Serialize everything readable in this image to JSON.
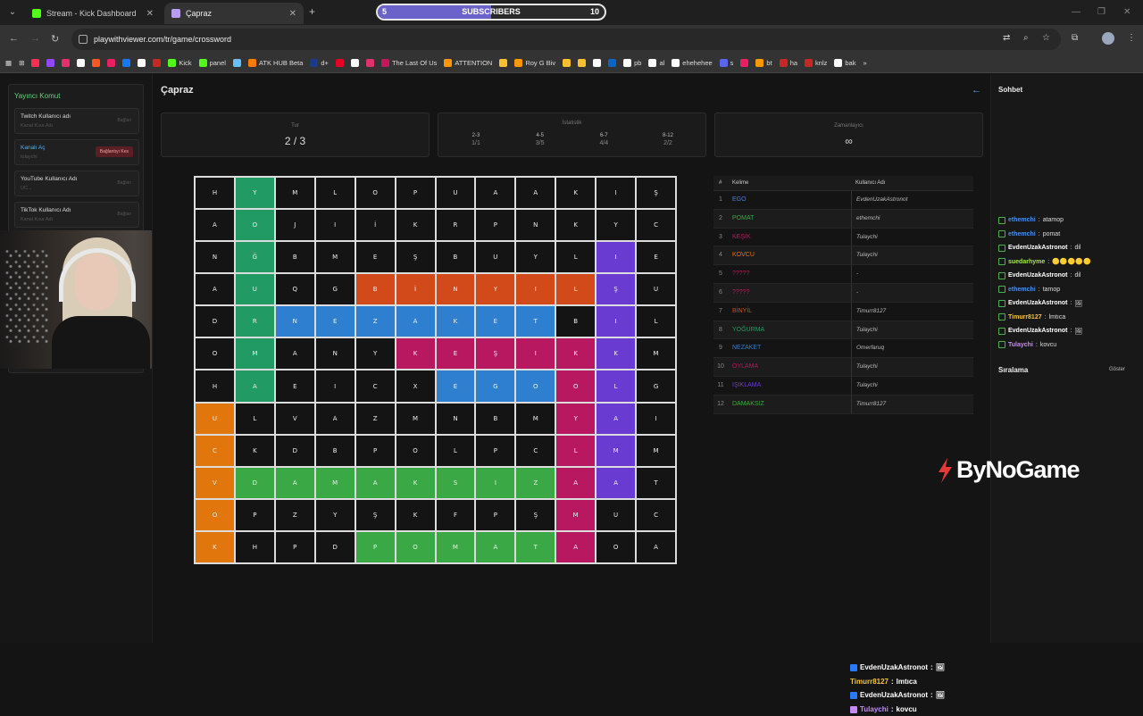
{
  "browser": {
    "tabs": [
      {
        "label": "Stream - Kick Dashboard",
        "icon_color": "#53fc18"
      },
      {
        "label": "Çapraz",
        "icon_color": "#b99cf0"
      }
    ],
    "url": "playwithviewer.com/tr/game/crossword",
    "bookmarks": [
      {
        "label": "",
        "color": "#ff2d55"
      },
      {
        "label": "",
        "color": "#9146ff"
      },
      {
        "label": "",
        "color": "#e1306c"
      },
      {
        "label": "",
        "color": "#ffffff"
      },
      {
        "label": "",
        "color": "#ff5722"
      },
      {
        "label": "",
        "color": "#e91e63"
      },
      {
        "label": "",
        "color": "#1877f2"
      },
      {
        "label": "",
        "color": "#ffffff"
      },
      {
        "label": "",
        "color": "#c62828"
      },
      {
        "label": "Kick",
        "color": "#53fc18"
      },
      {
        "label": "panel",
        "color": "#53fc18"
      },
      {
        "label": "",
        "color": "#66c0f4"
      },
      {
        "label": "ATK HUB Beta",
        "color": "#ff7a00"
      },
      {
        "label": "d+",
        "color": "#1a3a8a"
      },
      {
        "label": "",
        "color": "#e60023"
      },
      {
        "label": "",
        "color": "#ffffff"
      },
      {
        "label": "",
        "color": "#e1306c"
      },
      {
        "label": "The Last Of Us",
        "color": "#c2185b"
      },
      {
        "label": "ATTENTION",
        "color": "#ff9800"
      },
      {
        "label": "",
        "color": "#fbc02d"
      },
      {
        "label": "Roy G Biv",
        "color": "#ff9800"
      },
      {
        "label": "",
        "color": "#fbc02d"
      },
      {
        "label": "",
        "color": "#fbc02d"
      },
      {
        "label": "",
        "color": "#ffffff"
      },
      {
        "label": "",
        "color": "#0a66c2"
      },
      {
        "label": "pb",
        "color": "#ffffff"
      },
      {
        "label": "al",
        "color": "#ffffff"
      },
      {
        "label": "ehehehee",
        "color": "#ffffff"
      },
      {
        "label": "s",
        "color": "#5865f2"
      },
      {
        "label": "",
        "color": "#e91e63"
      },
      {
        "label": "bt",
        "color": "#ff9800"
      },
      {
        "label": "ha",
        "color": "#c62828"
      },
      {
        "label": "knlz",
        "color": "#c62828"
      },
      {
        "label": "bak",
        "color": "#ffffff"
      }
    ]
  },
  "subscribers": {
    "label": "SUBSCRIBERS",
    "current": "5",
    "goal": "10",
    "progress": 0.5,
    "color": "#6b63c9"
  },
  "left_panel": {
    "title": "Yayıncı Komut",
    "cards": [
      {
        "label": "Twitch Kullanıcı adı",
        "sub": "Kanal Kısa Adı",
        "btn": "Bağlan"
      },
      {
        "label": "Kanalı Aç",
        "sub": "tulaychi",
        "btn": "Bağlantıyı Kes"
      },
      {
        "label": "YouTube Kullanıcı Adı",
        "sub": "UC...",
        "btn": "Bağlan"
      },
      {
        "label": "TikTok Kullanıcı Adı",
        "sub": "Kanal Kısa Adı",
        "btn": "Bağlan"
      }
    ]
  },
  "game": {
    "title": "Çapraz",
    "round": {
      "label": "Tur",
      "value": "2 / 3"
    },
    "stats": {
      "label": "İstatistik",
      "cols": [
        {
          "range": "2-3",
          "value": "1/1"
        },
        {
          "range": "4-5",
          "value": "3/5"
        },
        {
          "range": "6-7",
          "value": "4/4"
        },
        {
          "range": "8-12",
          "value": "2/2"
        }
      ]
    },
    "timer": {
      "label": "Zamanlayıcı",
      "value": "∞"
    },
    "grid": [
      [
        "H",
        "Y",
        "M",
        "L",
        "O",
        "P",
        "U",
        "A",
        "A",
        "K",
        "I",
        "Ş"
      ],
      [
        "A",
        "O",
        "J",
        "I",
        "İ",
        "K",
        "R",
        "P",
        "N",
        "K",
        "Y",
        "C"
      ],
      [
        "N",
        "Ğ",
        "B",
        "M",
        "E",
        "Ş",
        "B",
        "U",
        "Y",
        "L",
        "I",
        "E"
      ],
      [
        "A",
        "U",
        "Q",
        "G",
        "B",
        "İ",
        "N",
        "Y",
        "I",
        "L",
        "Ş",
        "U"
      ],
      [
        "D",
        "R",
        "N",
        "E",
        "Z",
        "A",
        "K",
        "E",
        "T",
        "B",
        "I",
        "L"
      ],
      [
        "O",
        "M",
        "A",
        "N",
        "Y",
        "K",
        "E",
        "Ş",
        "I",
        "K",
        "K",
        "M"
      ],
      [
        "H",
        "A",
        "E",
        "I",
        "C",
        "X",
        "E",
        "G",
        "O",
        "O",
        "L",
        "G"
      ],
      [
        "U",
        "L",
        "V",
        "A",
        "Z",
        "M",
        "N",
        "B",
        "M",
        "Y",
        "A",
        "I"
      ],
      [
        "C",
        "K",
        "D",
        "B",
        "P",
        "O",
        "L",
        "P",
        "C",
        "L",
        "M",
        "M"
      ],
      [
        "V",
        "D",
        "A",
        "M",
        "A",
        "K",
        "S",
        "I",
        "Z",
        "A",
        "A",
        "T"
      ],
      [
        "O",
        "P",
        "Z",
        "Y",
        "Ş",
        "K",
        "F",
        "P",
        "Ş",
        "M",
        "U",
        "C"
      ],
      [
        "K",
        "H",
        "P",
        "D",
        "P",
        "O",
        "M",
        "A",
        "T",
        "A",
        "O",
        "A"
      ]
    ],
    "grid_colors": [
      [
        "",
        "g",
        "",
        "",
        "",
        "",
        "",
        "",
        "",
        "",
        "",
        ""
      ],
      [
        "",
        "g",
        "",
        "",
        "",
        "",
        "",
        "",
        "",
        "",
        "",
        ""
      ],
      [
        "",
        "g",
        "",
        "",
        "",
        "",
        "",
        "",
        "",
        "",
        "p",
        ""
      ],
      [
        "",
        "g",
        "",
        "",
        "r",
        "r",
        "r",
        "r",
        "r",
        "r",
        "p",
        ""
      ],
      [
        "",
        "g",
        "b",
        "b",
        "b",
        "b",
        "b",
        "b",
        "b",
        "",
        "p",
        ""
      ],
      [
        "",
        "g",
        "",
        "",
        "",
        "m",
        "m",
        "m",
        "m",
        "m",
        "p",
        ""
      ],
      [
        "",
        "g",
        "",
        "",
        "",
        "",
        "b",
        "b",
        "b",
        "m",
        "p",
        ""
      ],
      [
        "o",
        "",
        "",
        "",
        "",
        "",
        "",
        "",
        "",
        "m",
        "p",
        ""
      ],
      [
        "o",
        "",
        "",
        "",
        "",
        "",
        "",
        "",
        "",
        "m",
        "p",
        ""
      ],
      [
        "o",
        "G",
        "G",
        "G",
        "G",
        "G",
        "G",
        "G",
        "G",
        "m",
        "p",
        ""
      ],
      [
        "o",
        "",
        "",
        "",
        "",
        "",
        "",
        "",
        "",
        "m",
        "",
        ""
      ],
      [
        "o",
        "",
        "",
        "",
        "G",
        "G",
        "G",
        "G",
        "G",
        "m",
        "",
        ""
      ]
    ],
    "color_map": {
      "g": "#219a63",
      "G": "#3aa845",
      "r": "#d2491a",
      "b": "#2f7fd0",
      "m": "#b8185f",
      "p": "#6a3bd0",
      "o": "#e1760c"
    },
    "table": {
      "col_num": "#",
      "col_word": "Kelime",
      "col_user": "Kullanıcı Adı",
      "rows": [
        {
          "num": "1",
          "word": "EGO",
          "user": "EvdenUzakAstronot",
          "color": "#4b7fdc"
        },
        {
          "num": "2",
          "word": "POMAT",
          "user": "ethemchi",
          "color": "#3aa845"
        },
        {
          "num": "3",
          "word": "KEŞİK",
          "user": "Tulaychi",
          "color": "#b8185f"
        },
        {
          "num": "4",
          "word": "KOVCU",
          "user": "Tulaychi",
          "color": "#e1760c"
        },
        {
          "num": "5",
          "word": "?????",
          "user": "-",
          "color": "#b8185f"
        },
        {
          "num": "6",
          "word": "?????",
          "user": "-",
          "color": "#b8185f"
        },
        {
          "num": "7",
          "word": "BİNYİL",
          "user": "Timurr8127",
          "color": "#d2491a"
        },
        {
          "num": "8",
          "word": "YOĞURMA",
          "user": "Tulaychi",
          "color": "#219a63"
        },
        {
          "num": "9",
          "word": "NEZAKET",
          "user": "Omerfaruq",
          "color": "#2f7fd0"
        },
        {
          "num": "10",
          "word": "OYLAMA",
          "user": "Tulaychi",
          "color": "#b8185f"
        },
        {
          "num": "11",
          "word": "IŞIKLAMA",
          "user": "Tulaychi",
          "color": "#6a3bd0"
        },
        {
          "num": "12",
          "word": "DAMAKSIZ",
          "user": "Timurr8127",
          "color": "#3aa845"
        }
      ]
    }
  },
  "chat": {
    "title": "Sohbet",
    "messages": [
      {
        "user": "ethemchi",
        "text": "atamop",
        "color": "#4a90e2"
      },
      {
        "user": "ethemchi",
        "text": "pomat",
        "color": "#4a90e2"
      },
      {
        "user": "EvdenUzakAstronot",
        "text": "dil",
        "color": "#ffffff"
      },
      {
        "user": "suedarhyme",
        "text": "🟡🟡🟡🟡🟡",
        "color": "#a4e84a"
      },
      {
        "user": "EvdenUzakAstronot",
        "text": "dil",
        "color": "#ffffff"
      },
      {
        "user": "ethemchi",
        "text": "tamop",
        "color": "#4a90e2"
      },
      {
        "user": "EvdenUzakAstronot",
        "text": "🖼",
        "color": "#ffffff"
      },
      {
        "user": "Timurr8127",
        "text": "lmtıca",
        "color": "#f5c542"
      },
      {
        "user": "EvdenUzakAstronot",
        "text": "🖼",
        "color": "#ffffff"
      },
      {
        "user": "Tulaychi",
        "text": "kovcu",
        "color": "#c58af9"
      }
    ],
    "ranking_title": "Sıralama",
    "ranking_show": "Göster"
  },
  "watermark": {
    "text": "ByNoGame",
    "color": "#e53935"
  },
  "overlay_chat": [
    {
      "user": "EvdenUzakAstronot",
      "text": "🖼",
      "color": "#ffffff",
      "badge": "#2979ff"
    },
    {
      "user": "Timurr8127",
      "text": "lmtıca",
      "color": "#f5c542",
      "badge": ""
    },
    {
      "user": "EvdenUzakAstronot",
      "text": "🖼",
      "color": "#ffffff",
      "badge": "#2979ff"
    },
    {
      "user": "Tulaychi",
      "text": "kovcu",
      "color": "#c58af9",
      "badge": "#c58af9"
    }
  ]
}
